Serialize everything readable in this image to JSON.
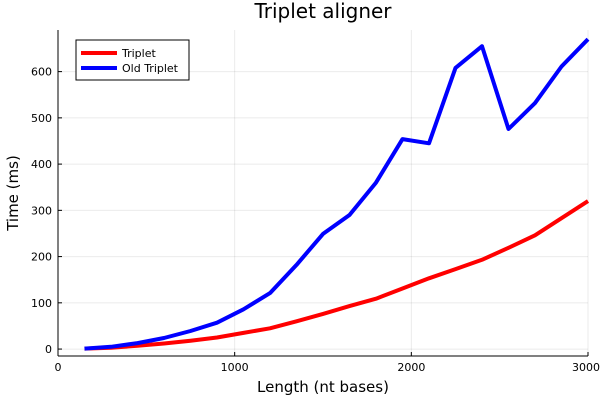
{
  "chart_data": {
    "type": "line",
    "title": "Triplet aligner",
    "xlabel": "Length (nt bases)",
    "ylabel": "Time (ms)",
    "xlim": [
      0,
      3000
    ],
    "ylim": [
      -15,
      690
    ],
    "xticks": [
      0,
      1000,
      2000,
      3000
    ],
    "yticks": [
      0,
      100,
      200,
      300,
      400,
      500,
      600
    ],
    "grid": true,
    "legend_position": "top-left",
    "series": [
      {
        "name": "Triplet",
        "color": "#ff0000",
        "x": [
          150,
          300,
          450,
          600,
          750,
          900,
          1050,
          1200,
          1350,
          1500,
          1650,
          1800,
          1950,
          2100,
          2250,
          2400,
          2550,
          2700,
          2850,
          3000
        ],
        "y": [
          1,
          3,
          7,
          12,
          18,
          25,
          35,
          45,
          60,
          76,
          93,
          109,
          131,
          153,
          173,
          193,
          219,
          246,
          283,
          320
        ]
      },
      {
        "name": "Old Triplet",
        "color": "#0000ff",
        "x": [
          150,
          300,
          450,
          600,
          750,
          900,
          1050,
          1200,
          1350,
          1500,
          1650,
          1800,
          1950,
          2100,
          2250,
          2400,
          2550,
          2700,
          2850,
          3000
        ],
        "y": [
          1,
          5,
          13,
          24,
          39,
          57,
          86,
          121,
          182,
          249,
          290,
          360,
          454,
          445,
          608,
          655,
          476,
          532,
          611,
          670
        ]
      }
    ]
  }
}
